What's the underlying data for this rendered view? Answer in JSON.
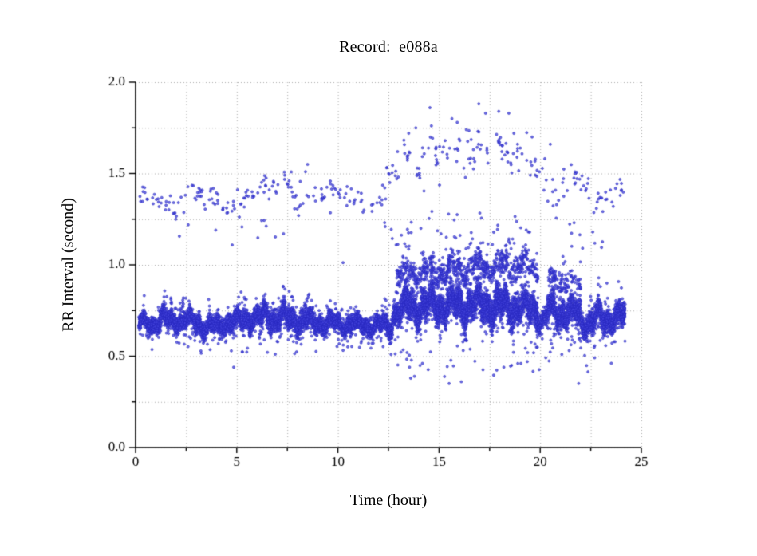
{
  "chart_data": {
    "type": "scatter",
    "title": "Record:  e088a",
    "xlabel": "Time (hour)",
    "ylabel": "RR Interval (second)",
    "xlim": [
      0,
      25
    ],
    "ylim": [
      0.0,
      2.0
    ],
    "x_major_ticks": [
      0,
      5,
      10,
      15,
      20,
      25
    ],
    "x_tick_labels": [
      "0",
      "5",
      "10",
      "15",
      "20",
      "25"
    ],
    "x_minor_step": 2.5,
    "y_major_ticks": [
      0.0,
      0.5,
      1.0,
      1.5,
      2.0
    ],
    "y_tick_labels": [
      "0.0",
      "0.5",
      "1.0",
      "1.5",
      "2.0"
    ],
    "y_minor_step": 0.25,
    "grid": {
      "show": true,
      "style": "dotted",
      "color": "#a8a8a8",
      "x_step": 2.5,
      "y_step": 0.25
    },
    "legend": "none",
    "point_style": {
      "shape": "circle",
      "radius_px": 1.5,
      "fill": "rgba(70,70,222,0.75)",
      "stroke": "rgba(38,38,190,0.9)"
    },
    "data_time_range_hours": [
      0.15,
      24.2
    ],
    "segments_format": [
      "t_start_hour",
      "t_end_hour",
      "rr_center_s",
      "rr_half_spread_s",
      "points_per_hour"
    ],
    "series": [
      {
        "name": "rr-main-dense-band",
        "seed": 101,
        "segments": [
          [
            0.15,
            1.2,
            0.68,
            0.05,
            400
          ],
          [
            1.2,
            2.2,
            0.7,
            0.055,
            400
          ],
          [
            2.2,
            3.2,
            0.69,
            0.06,
            400
          ],
          [
            3.2,
            4.2,
            0.66,
            0.055,
            400
          ],
          [
            4.2,
            5.2,
            0.685,
            0.055,
            400
          ],
          [
            5.2,
            6.3,
            0.705,
            0.065,
            400
          ],
          [
            6.3,
            7.4,
            0.715,
            0.07,
            400
          ],
          [
            7.4,
            8.6,
            0.7,
            0.07,
            400
          ],
          [
            8.6,
            9.8,
            0.68,
            0.055,
            400
          ],
          [
            9.8,
            11.0,
            0.675,
            0.05,
            400
          ],
          [
            11.0,
            12.0,
            0.67,
            0.05,
            400
          ],
          [
            12.0,
            12.7,
            0.665,
            0.06,
            400
          ],
          [
            12.7,
            13.3,
            0.745,
            0.085,
            450
          ],
          [
            13.3,
            14.5,
            0.775,
            0.095,
            500
          ],
          [
            14.5,
            16.0,
            0.78,
            0.1,
            500
          ],
          [
            16.0,
            17.5,
            0.78,
            0.1,
            500
          ],
          [
            17.5,
            19.0,
            0.775,
            0.1,
            500
          ],
          [
            19.0,
            19.9,
            0.76,
            0.09,
            450
          ],
          [
            19.9,
            20.35,
            0.7,
            0.06,
            250
          ],
          [
            20.35,
            21.3,
            0.745,
            0.09,
            450
          ],
          [
            21.3,
            22.0,
            0.73,
            0.085,
            420
          ],
          [
            22.0,
            22.7,
            0.68,
            0.07,
            400
          ],
          [
            22.7,
            24.2,
            0.71,
            0.08,
            420
          ]
        ]
      },
      {
        "name": "rr-secondary-cloud",
        "seed": 202,
        "segments": [
          [
            12.9,
            14.2,
            0.95,
            0.07,
            100
          ],
          [
            14.2,
            15.3,
            0.97,
            0.08,
            130
          ],
          [
            15.3,
            16.5,
            0.98,
            0.075,
            130
          ],
          [
            16.5,
            18.0,
            0.995,
            0.075,
            120
          ],
          [
            18.0,
            19.3,
            1.0,
            0.08,
            120
          ],
          [
            19.3,
            19.9,
            0.99,
            0.07,
            90
          ],
          [
            20.4,
            21.4,
            0.915,
            0.06,
            80
          ],
          [
            21.4,
            22.0,
            0.895,
            0.05,
            45
          ]
        ]
      },
      {
        "name": "rr-sparse-upper-band",
        "seed": 303,
        "segments": [
          [
            0.2,
            1.2,
            1.36,
            0.06,
            16
          ],
          [
            1.2,
            2.4,
            1.32,
            0.07,
            14
          ],
          [
            2.4,
            3.4,
            1.4,
            0.05,
            16
          ],
          [
            3.4,
            4.4,
            1.36,
            0.07,
            14
          ],
          [
            4.4,
            5.4,
            1.33,
            0.06,
            14
          ],
          [
            5.4,
            6.6,
            1.4,
            0.06,
            16
          ],
          [
            6.6,
            7.6,
            1.43,
            0.05,
            14
          ],
          [
            7.6,
            8.8,
            1.37,
            0.07,
            14
          ],
          [
            8.8,
            10.0,
            1.4,
            0.06,
            14
          ],
          [
            10.0,
            11.2,
            1.37,
            0.06,
            14
          ],
          [
            11.2,
            12.4,
            1.33,
            0.06,
            12
          ],
          [
            12.4,
            13.2,
            1.5,
            0.07,
            14
          ],
          [
            13.2,
            14.4,
            1.58,
            0.09,
            16
          ],
          [
            14.4,
            15.6,
            1.62,
            0.11,
            16
          ],
          [
            15.6,
            16.8,
            1.6,
            0.1,
            16
          ],
          [
            16.8,
            18.2,
            1.63,
            0.11,
            16
          ],
          [
            18.2,
            19.4,
            1.6,
            0.09,
            16
          ],
          [
            19.4,
            20.2,
            1.55,
            0.1,
            14
          ],
          [
            20.2,
            21.2,
            1.42,
            0.09,
            14
          ],
          [
            21.2,
            22.4,
            1.45,
            0.08,
            14
          ],
          [
            22.4,
            23.2,
            1.33,
            0.06,
            12
          ],
          [
            23.2,
            24.2,
            1.42,
            0.07,
            14
          ]
        ]
      },
      {
        "name": "rr-mid-scatter",
        "seed": 404,
        "segments": [
          [
            0.5,
            12.6,
            1.13,
            0.12,
            1.2
          ],
          [
            12.6,
            20.0,
            1.16,
            0.13,
            7
          ],
          [
            20.0,
            24.2,
            1.1,
            0.13,
            3
          ]
        ]
      },
      {
        "name": "rr-low-outliers",
        "seed": 505,
        "segments": [
          [
            0.3,
            12.6,
            0.53,
            0.05,
            1.2
          ],
          [
            12.6,
            20.0,
            0.46,
            0.08,
            4.5
          ],
          [
            20.0,
            24.2,
            0.5,
            0.09,
            3.5
          ]
        ]
      },
      {
        "name": "rr-extreme-points",
        "points": [
          [
            12.95,
            1.62
          ],
          [
            13.5,
            1.72
          ],
          [
            13.85,
            1.75
          ],
          [
            14.55,
            1.86
          ],
          [
            15.3,
            1.68
          ],
          [
            15.9,
            1.78
          ],
          [
            16.35,
            1.74
          ],
          [
            17.3,
            1.83
          ],
          [
            17.95,
            1.84
          ],
          [
            18.45,
            1.83
          ],
          [
            18.7,
            1.72
          ],
          [
            19.6,
            1.7
          ],
          [
            20.5,
            1.66
          ],
          [
            8.5,
            1.55
          ],
          [
            14.1,
            1.2
          ],
          [
            15.5,
            0.35
          ],
          [
            16.1,
            0.36
          ],
          [
            13.6,
            0.38
          ],
          [
            18.2,
            0.44
          ],
          [
            21.9,
            0.35
          ],
          [
            4.85,
            0.44
          ],
          [
            23.3,
            0.9
          ],
          [
            22.6,
            1.18
          ]
        ]
      }
    ]
  }
}
